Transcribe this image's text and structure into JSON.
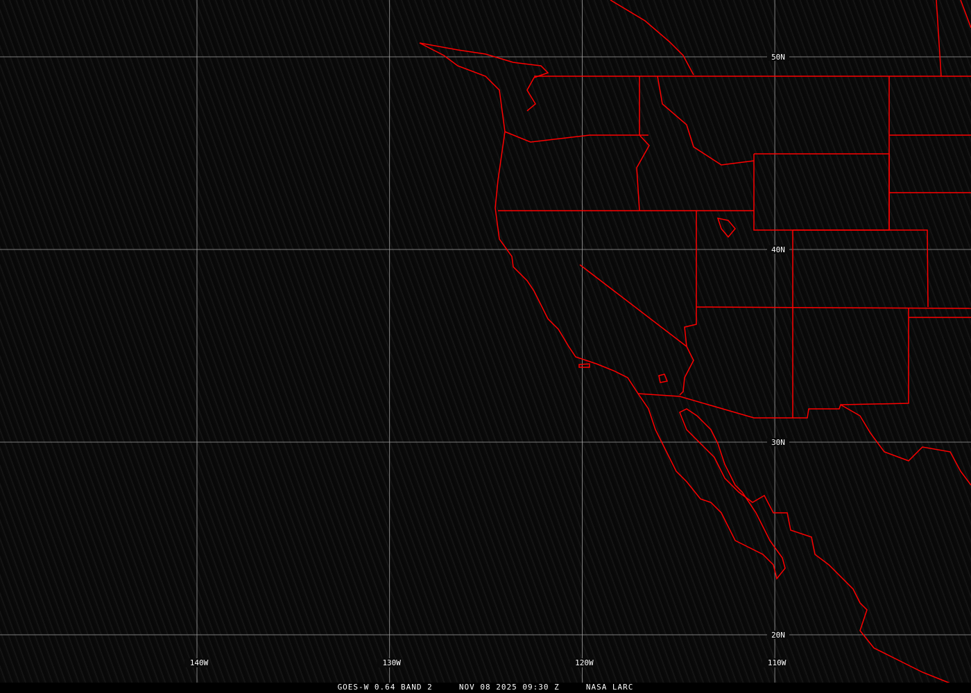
{
  "image": {
    "satellite": "GOES-W",
    "caption": "GOES-W 0.64 BAND 2     NOV 08 2025 09:30 Z     NASA LARC",
    "colors": {
      "borders": "#ff0000",
      "grid": "#a0a0a0",
      "labels": "#ffffff",
      "background": "#0a0a0a"
    }
  },
  "grid": {
    "latitudes": [
      {
        "value": 50,
        "label": "50N"
      },
      {
        "value": 40,
        "label": "40N"
      },
      {
        "value": 30,
        "label": "30N"
      },
      {
        "value": 20,
        "label": "20N"
      }
    ],
    "longitudes": [
      {
        "value": -140,
        "label": "140W"
      },
      {
        "value": -130,
        "label": "130W"
      },
      {
        "value": -120,
        "label": "120W"
      },
      {
        "value": -110,
        "label": "110W"
      }
    ]
  }
}
